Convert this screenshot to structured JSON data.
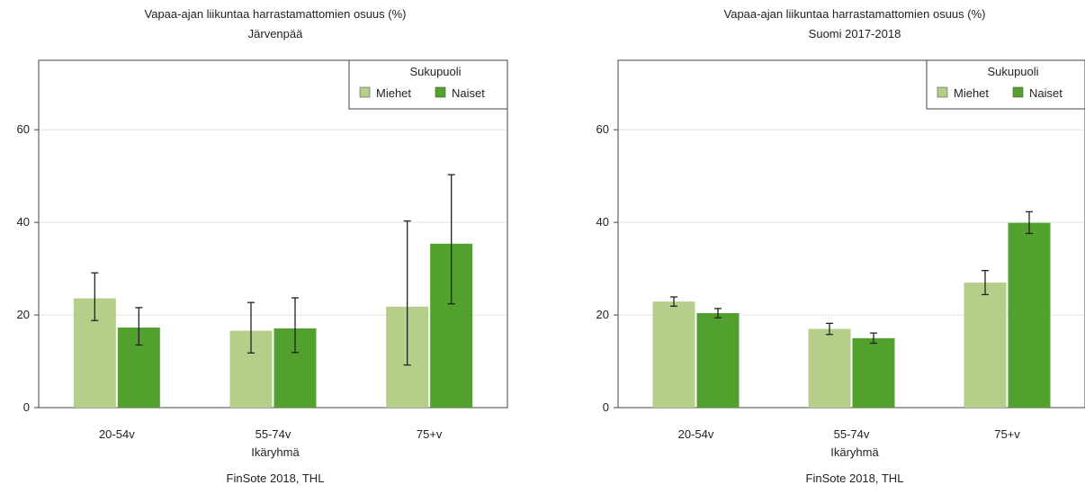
{
  "colors": {
    "miehet": "#b5cf8a",
    "naiset": "#52a12f",
    "grid": "#e2e2e2",
    "axis": "#444444",
    "errorbar": "#222222"
  },
  "chart_data": [
    {
      "type": "bar",
      "title": "Vapaa-ajan liikuntaa harrastamattomien osuus (%)",
      "subtitle": "Järvenpää",
      "xlabel": "Ikäryhmä",
      "ylabel": "",
      "caption": "FinSote 2018, THL",
      "categories": [
        "20-54v",
        "55-74v",
        "75+v"
      ],
      "ylim": [
        0,
        75
      ],
      "yticks": [
        0,
        20,
        40,
        60
      ],
      "grid": true,
      "legend": {
        "title": "Sukupuoli",
        "placement": "top-right"
      },
      "series": [
        {
          "name": "Miehet",
          "values": [
            23.6,
            16.6,
            21.8
          ],
          "ci_low": [
            18.8,
            11.8,
            9.2
          ],
          "ci_high": [
            29.1,
            22.7,
            40.3
          ]
        },
        {
          "name": "Naiset",
          "values": [
            17.3,
            17.1,
            35.4
          ],
          "ci_low": [
            13.5,
            11.9,
            22.4
          ],
          "ci_high": [
            21.6,
            23.7,
            50.3
          ]
        }
      ]
    },
    {
      "type": "bar",
      "title": "Vapaa-ajan liikuntaa harrastamattomien osuus (%)",
      "subtitle": "Suomi 2017-2018",
      "xlabel": "Ikäryhmä",
      "ylabel": "",
      "caption": "FinSote 2018, THL",
      "categories": [
        "20-54v",
        "55-74v",
        "75+v"
      ],
      "ylim": [
        0,
        75
      ],
      "yticks": [
        0,
        20,
        40,
        60
      ],
      "grid": true,
      "legend": {
        "title": "Sukupuoli",
        "placement": "top-right"
      },
      "series": [
        {
          "name": "Miehet",
          "values": [
            22.9,
            17.0,
            27.0
          ],
          "ci_low": [
            21.9,
            15.8,
            24.4
          ],
          "ci_high": [
            23.9,
            18.2,
            29.6
          ]
        },
        {
          "name": "Naiset",
          "values": [
            20.4,
            15.0,
            39.9
          ],
          "ci_low": [
            19.4,
            13.9,
            37.6
          ],
          "ci_high": [
            21.4,
            16.1,
            42.3
          ]
        }
      ]
    }
  ]
}
